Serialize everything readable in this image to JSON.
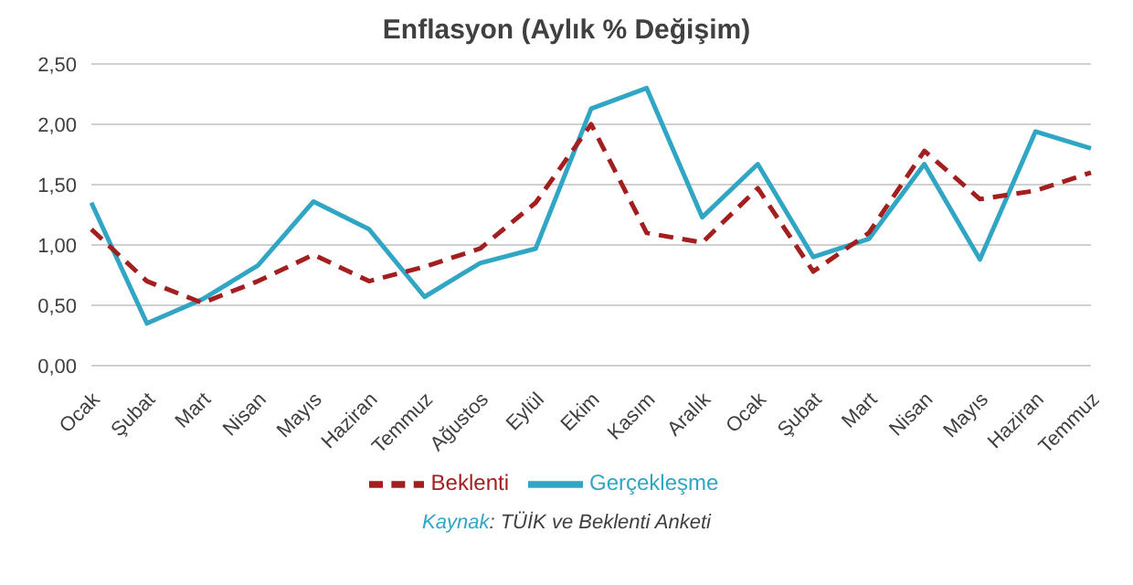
{
  "chart_data": {
    "type": "line",
    "title": "Enflasyon (Aylık % Değişim)",
    "categories": [
      "Ocak",
      "Şubat",
      "Mart",
      "Nisan",
      "Mayıs",
      "Haziran",
      "Temmuz",
      "Ağustos",
      "Eylül",
      "Ekim",
      "Kasım",
      "Aralık",
      "Ocak",
      "Şubat",
      "Mart",
      "Nisan",
      "Mayıs",
      "Haziran",
      "Temmuz"
    ],
    "series": [
      {
        "name": "Gerçekleşme",
        "color": "#31a5c4",
        "line_style": "solid",
        "values": [
          1.35,
          0.35,
          0.55,
          0.83,
          1.36,
          1.13,
          0.57,
          0.85,
          0.97,
          2.13,
          2.3,
          1.23,
          1.67,
          0.9,
          1.05,
          1.67,
          0.88,
          1.94,
          1.8
        ]
      },
      {
        "name": "Beklenti",
        "color": "#a31f1f",
        "line_style": "dashed",
        "values": [
          1.13,
          0.7,
          0.52,
          0.7,
          0.92,
          0.7,
          0.82,
          0.97,
          1.35,
          2.0,
          1.1,
          1.02,
          1.47,
          0.78,
          1.1,
          1.78,
          1.38,
          1.45,
          1.6
        ]
      }
    ],
    "ylim": [
      0,
      2.5
    ],
    "yticks": [
      {
        "value": 0,
        "label": "0,00"
      },
      {
        "value": 0.5,
        "label": "0,50"
      },
      {
        "value": 1,
        "label": "1,00"
      },
      {
        "value": 1.5,
        "label": "1,50"
      },
      {
        "value": 2,
        "label": "2,00"
      },
      {
        "value": 2.5,
        "label": "2,50"
      }
    ],
    "grid": "y",
    "legend": "bottom",
    "marker": "none",
    "annotations": [
      "Kaynak: TÜİK ve Beklenti Anketi"
    ]
  }
}
